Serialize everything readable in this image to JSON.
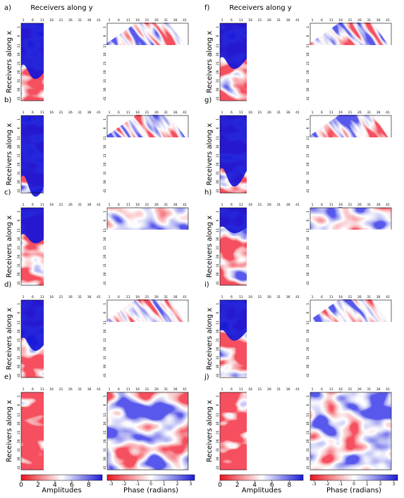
{
  "column_title": "Receivers along y",
  "row_axis_label": "Receivers along x",
  "grid_ticks": [
    1,
    6,
    11,
    16,
    21,
    26,
    31,
    36,
    41
  ],
  "panels": [
    {
      "label": "a)"
    },
    {
      "label": "b)"
    },
    {
      "label": "c)"
    },
    {
      "label": "d)"
    },
    {
      "label": "e)"
    },
    {
      "label": "f)"
    },
    {
      "label": "g)"
    },
    {
      "label": "h)"
    },
    {
      "label": "i)"
    },
    {
      "label": "j)"
    }
  ],
  "amplitude_colorbar": {
    "label": "Amplitudes",
    "lim": [
      0,
      9.6
    ],
    "ticks": [
      0,
      2,
      4,
      6,
      8
    ]
  },
  "phase_colorbar": {
    "label": "Phase (radians)",
    "lim": [
      -3.3,
      3.3
    ],
    "ticks": [
      -3,
      -2,
      -1,
      0,
      1,
      2,
      3
    ]
  }
}
